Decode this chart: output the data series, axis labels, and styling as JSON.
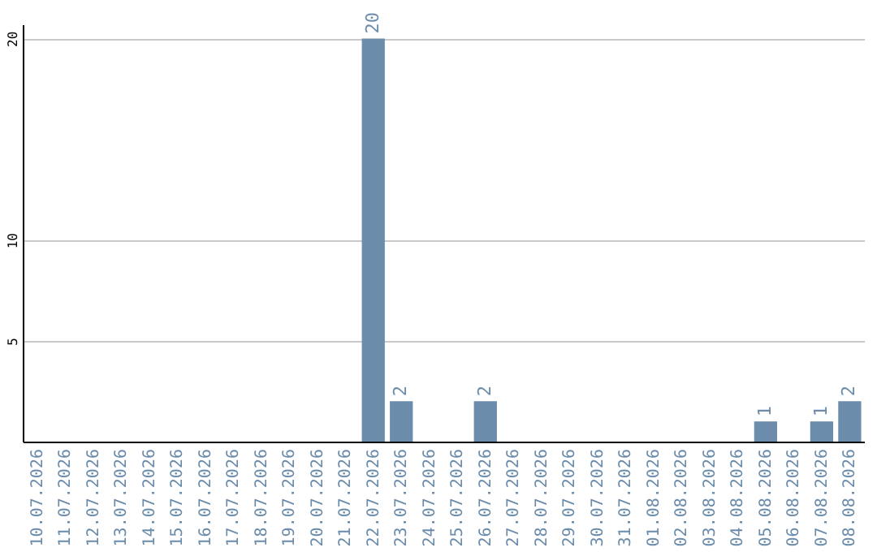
{
  "chart_data": {
    "type": "bar",
    "categories": [
      "10.07.2026",
      "11.07.2026",
      "12.07.2026",
      "13.07.2026",
      "14.07.2026",
      "15.07.2026",
      "16.07.2026",
      "17.07.2026",
      "18.07.2026",
      "19.07.2026",
      "20.07.2026",
      "21.07.2026",
      "22.07.2026",
      "23.07.2026",
      "24.07.2026",
      "25.07.2026",
      "26.07.2026",
      "27.07.2026",
      "28.07.2026",
      "29.07.2026",
      "30.07.2026",
      "31.07.2026",
      "01.08.2026",
      "02.08.2026",
      "03.08.2026",
      "04.08.2026",
      "05.08.2026",
      "06.08.2026",
      "07.08.2026",
      "08.08.2026"
    ],
    "values": [
      0,
      0,
      0,
      0,
      0,
      0,
      0,
      0,
      0,
      0,
      0,
      0,
      20,
      2,
      0,
      0,
      2,
      0,
      0,
      0,
      0,
      0,
      0,
      0,
      0,
      0,
      1,
      0,
      1,
      2
    ],
    "value_labels": [
      null,
      null,
      null,
      null,
      null,
      null,
      null,
      null,
      null,
      null,
      null,
      null,
      "20",
      "2",
      null,
      null,
      "2",
      null,
      null,
      null,
      null,
      null,
      null,
      null,
      null,
      null,
      "1",
      null,
      "1",
      "2"
    ],
    "color": "#6b8cab",
    "ylim": [
      0,
      20.7
    ],
    "yticks": [
      5,
      10,
      20
    ],
    "grid": "y"
  }
}
